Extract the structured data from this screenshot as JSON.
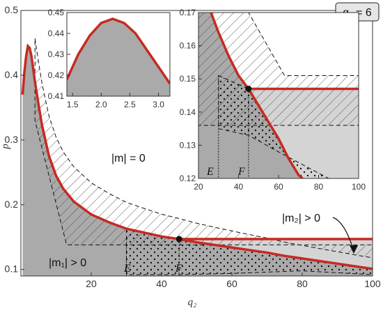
{
  "chart_data": [
    {
      "type": "area",
      "xlabel": "q₂",
      "ylabel": "p",
      "xlim": [
        0,
        100
      ],
      "ylim": [
        0.09,
        0.5
      ],
      "x_ticks": [
        "20",
        "40",
        "60",
        "80",
        "100"
      ],
      "y_ticks": [
        "0.1",
        "0.2",
        "0.3",
        "0.4",
        "0.5"
      ],
      "parameter_box": "q₁ = 6",
      "annotations": {
        "m_zero": "|m| = 0",
        "m1_positive": "|m₁| > 0",
        "m2_positive": "|m₂| > 0",
        "E": "E",
        "F": "F"
      },
      "curves": {
        "main_red": [
          [
            0.5,
            0.37
          ],
          [
            1,
            0.405
          ],
          [
            1.5,
            0.43
          ],
          [
            2,
            0.445
          ],
          [
            2.5,
            0.442
          ],
          [
            3,
            0.43
          ],
          [
            4,
            0.39
          ],
          [
            5,
            0.355
          ],
          [
            6,
            0.323
          ],
          [
            8,
            0.275
          ],
          [
            10,
            0.245
          ],
          [
            12,
            0.225
          ],
          [
            15,
            0.205
          ],
          [
            20,
            0.185
          ],
          [
            25,
            0.173
          ],
          [
            30,
            0.163
          ],
          [
            35,
            0.157
          ],
          [
            40,
            0.151
          ],
          [
            45,
            0.147
          ],
          [
            50,
            0.142
          ],
          [
            55,
            0.138
          ],
          [
            60,
            0.134
          ],
          [
            65,
            0.13
          ],
          [
            70,
            0.126
          ],
          [
            75,
            0.121
          ],
          [
            80,
            0.117
          ],
          [
            85,
            0.113
          ],
          [
            90,
            0.109
          ],
          [
            95,
            0.105
          ],
          [
            100,
            0.101
          ]
        ],
        "horizontal_red": {
          "x": [
            45,
            100
          ],
          "y": 0.147
        },
        "E_line_x": 30,
        "F_line_x": 45,
        "marked_point": [
          45,
          0.147
        ]
      }
    },
    {
      "type": "area",
      "inset": "top-left",
      "xlim": [
        1.4,
        3.2
      ],
      "ylim": [
        0.41,
        0.45
      ],
      "x_ticks": [
        "1.5",
        "2.0",
        "2.5",
        "3.0"
      ],
      "y_ticks": [
        "0.41",
        "0.42",
        "0.43",
        "0.44",
        "0.45"
      ],
      "curve": [
        [
          1.4,
          0.418
        ],
        [
          1.6,
          0.43
        ],
        [
          1.8,
          0.439
        ],
        [
          2.0,
          0.445
        ],
        [
          2.2,
          0.447
        ],
        [
          2.4,
          0.445
        ],
        [
          2.6,
          0.44
        ],
        [
          2.8,
          0.432
        ],
        [
          3.0,
          0.424
        ],
        [
          3.2,
          0.416
        ]
      ]
    },
    {
      "type": "area",
      "inset": "top-right",
      "xlim": [
        20,
        100
      ],
      "ylim": [
        0.12,
        0.17
      ],
      "x_ticks": [
        "20",
        "40",
        "60",
        "80",
        "100"
      ],
      "y_ticks": [
        "0.12",
        "0.13",
        "0.14",
        "0.15",
        "0.16",
        "0.17"
      ],
      "annotations": {
        "E": "E",
        "F": "F"
      },
      "curve": [
        [
          20,
          0.18
        ],
        [
          30,
          0.164
        ],
        [
          35,
          0.157
        ],
        [
          40,
          0.151
        ],
        [
          45,
          0.147
        ],
        [
          50,
          0.142
        ],
        [
          55,
          0.137
        ],
        [
          60,
          0.132
        ],
        [
          65,
          0.126
        ],
        [
          70,
          0.121
        ],
        [
          72,
          0.12
        ]
      ],
      "horizontal_red": {
        "x": [
          45,
          100
        ],
        "y": 0.147
      },
      "E_line_x": 30,
      "F_line_x": 45,
      "marked_point": [
        45,
        0.147
      ]
    }
  ]
}
